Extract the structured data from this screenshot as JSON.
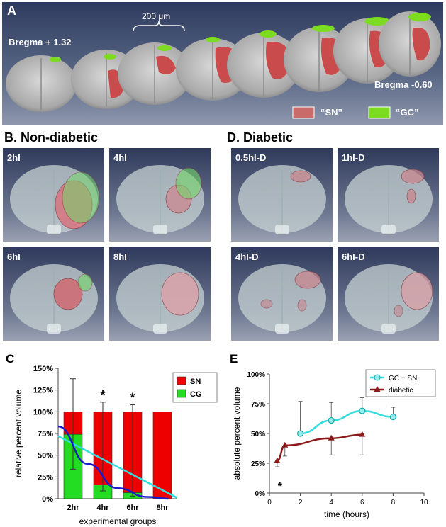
{
  "panel_a": {
    "label": "A",
    "scale": "200 μm",
    "bregma_start": "Bregma + 1.32",
    "bregma_end": "Bregma -0.60",
    "legend": [
      {
        "label": "“SN”",
        "color": "#c96b6b"
      },
      {
        "label": "“GC”",
        "color": "#7ddc1f"
      }
    ]
  },
  "panel_b": {
    "title": "B. Non-diabetic",
    "tiles": [
      "2hI",
      "4hI",
      "6hI",
      "8hI"
    ]
  },
  "panel_d": {
    "title": "D. Diabetic",
    "tiles": [
      "0.5hI-D",
      "1hI-D",
      "4hI-D",
      "6hI-D"
    ]
  },
  "colors": {
    "sn": "#ee0000",
    "cg": "#22dd22",
    "cyan": "#33dddd",
    "blue": "#1a1acc",
    "diabetic": "#8b1a1a"
  },
  "chart_data": [
    {
      "panel": "C",
      "type": "bar",
      "stacked": true,
      "categories": [
        "2hr",
        "4hr",
        "6hr",
        "8hr"
      ],
      "series": [
        {
          "name": "SN",
          "values": [
            26,
            84,
            93,
            100
          ]
        },
        {
          "name": "CG",
          "values": [
            74,
            16,
            7,
            0
          ]
        }
      ],
      "error_bars": [
        {
          "category": "2hr",
          "upper": 138,
          "lower": 34
        },
        {
          "category": "4hr",
          "upper": 111,
          "lower": 9
        },
        {
          "category": "6hr",
          "upper": 108,
          "lower": 3
        }
      ],
      "significance": [
        "",
        "*",
        "*",
        ""
      ],
      "trend_lines": [
        {
          "name": "linear",
          "color": "cyan",
          "x": [
            0.5,
            4.5
          ],
          "y": [
            72,
            1
          ]
        },
        {
          "name": "curve",
          "color": "blue",
          "x": [
            0.5,
            1.5,
            2.5,
            3.5,
            4.2
          ],
          "y": [
            83,
            40,
            12,
            2,
            0
          ]
        }
      ],
      "yticks": [
        "0%",
        "25%",
        "50%",
        "75%",
        "100%",
        "125%",
        "150%"
      ],
      "ylim": [
        0,
        150
      ],
      "xlabel": "experimental groups",
      "ylabel": "relative percent volume",
      "legend": [
        "SN",
        "CG"
      ],
      "label": "C"
    },
    {
      "panel": "E",
      "type": "line",
      "series": [
        {
          "name": "GC + SN",
          "x": [
            2,
            4,
            6,
            8
          ],
          "y": [
            50,
            61,
            69,
            64
          ],
          "err": [
            27,
            15,
            11,
            8
          ]
        },
        {
          "name": "diabetic",
          "x": [
            0.5,
            1,
            4,
            6
          ],
          "y": [
            27,
            40,
            46,
            49
          ],
          "err": [
            5,
            9,
            14,
            17
          ]
        }
      ],
      "significance": {
        "x": 0.5,
        "text": "*"
      },
      "xticks": [
        "0",
        "2",
        "4",
        "6",
        "8",
        "10"
      ],
      "yticks": [
        "0%",
        "25%",
        "50%",
        "75%",
        "100%"
      ],
      "xlim": [
        0,
        10
      ],
      "ylim": [
        0,
        100
      ],
      "xlabel": "time (hours)",
      "ylabel": "absolute percent volume",
      "label": "E"
    }
  ]
}
